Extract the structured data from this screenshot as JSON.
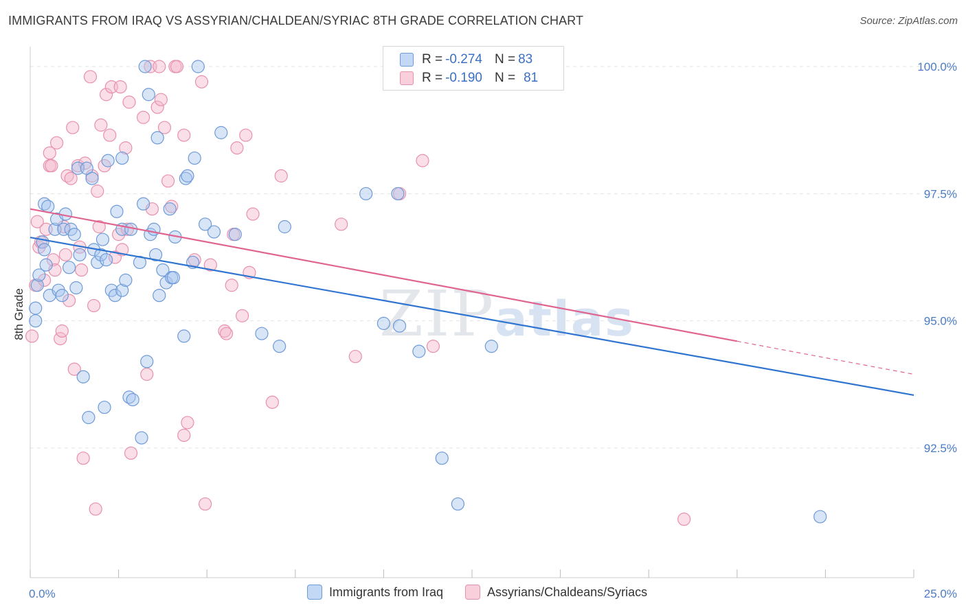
{
  "title": "IMMIGRANTS FROM IRAQ VS ASSYRIAN/CHALDEAN/SYRIAC 8TH GRADE CORRELATION CHART",
  "source": "Source: ZipAtlas.com",
  "watermark": {
    "part1": "ZIP",
    "part2": "atlas"
  },
  "legend": {
    "rows": [
      {
        "r_label": "R = ",
        "r_value": "-0.274",
        "n_label": "N = ",
        "n_value": "83"
      },
      {
        "r_label": "R = ",
        "r_value": "-0.190",
        "n_label": "N = ",
        "n_value": "81"
      }
    ]
  },
  "bottom_legend": {
    "series1": "Immigrants from Iraq",
    "series2": "Assyrians/Chaldeans/Syriacs"
  },
  "colors": {
    "blue_fill": "#a9c6ee",
    "blue_stroke": "#6d9ad8",
    "blue_line": "#2f74d0",
    "pink_fill": "#f5b8cb",
    "pink_stroke": "#e890ab",
    "pink_line": "#e0648f",
    "tick_text": "#4a7cc7",
    "grid": "#e3e3e3"
  },
  "chart_data": {
    "type": "scatter",
    "title": "IMMIGRANTS FROM IRAQ VS ASSYRIAN/CHALDEAN/SYRIAC 8TH GRADE CORRELATION CHART",
    "xlabel": "",
    "ylabel": "8th Grade",
    "xlim": [
      0,
      25
    ],
    "ylim": [
      90.0,
      100.3
    ],
    "x_tick_labels": [
      "0.0%",
      "25.0%"
    ],
    "y_ticks": [
      92.5,
      95.0,
      97.5,
      100.0
    ],
    "y_tick_labels": [
      "92.5%",
      "95.0%",
      "97.5%",
      "100.0%"
    ],
    "grid": true,
    "legend_position": "top-center",
    "series": [
      {
        "name": "Immigrants from Iraq",
        "r": -0.274,
        "n": 83,
        "trend": {
          "x": [
            0,
            25
          ],
          "y": [
            96.64,
            93.54
          ]
        },
        "points": [
          [
            0.15,
            95.0
          ],
          [
            0.15,
            95.25
          ],
          [
            0.2,
            95.7
          ],
          [
            0.25,
            95.9
          ],
          [
            0.35,
            96.55
          ],
          [
            0.4,
            96.4
          ],
          [
            0.4,
            97.3
          ],
          [
            0.45,
            96.1
          ],
          [
            0.5,
            97.25
          ],
          [
            0.55,
            95.5
          ],
          [
            0.7,
            96.8
          ],
          [
            0.75,
            97.0
          ],
          [
            0.8,
            95.6
          ],
          [
            0.9,
            95.5
          ],
          [
            0.95,
            96.8
          ],
          [
            1.0,
            97.1
          ],
          [
            1.1,
            96.05
          ],
          [
            1.15,
            96.8
          ],
          [
            1.25,
            96.7
          ],
          [
            1.3,
            95.65
          ],
          [
            1.35,
            98.0
          ],
          [
            1.4,
            96.3
          ],
          [
            1.5,
            93.9
          ],
          [
            1.6,
            98.0
          ],
          [
            1.65,
            93.1
          ],
          [
            1.75,
            97.8
          ],
          [
            1.8,
            96.4
          ],
          [
            1.9,
            96.15
          ],
          [
            2.0,
            96.3
          ],
          [
            2.05,
            96.6
          ],
          [
            2.1,
            93.3
          ],
          [
            2.15,
            96.2
          ],
          [
            2.2,
            98.15
          ],
          [
            2.3,
            95.6
          ],
          [
            2.4,
            95.5
          ],
          [
            2.45,
            97.15
          ],
          [
            2.6,
            96.8
          ],
          [
            2.6,
            98.2
          ],
          [
            2.6,
            95.6
          ],
          [
            2.7,
            95.8
          ],
          [
            2.85,
            96.8
          ],
          [
            2.8,
            93.5
          ],
          [
            2.9,
            93.45
          ],
          [
            3.1,
            96.15
          ],
          [
            3.15,
            92.7
          ],
          [
            3.2,
            97.3
          ],
          [
            3.25,
            100.0
          ],
          [
            3.3,
            94.2
          ],
          [
            3.35,
            99.45
          ],
          [
            3.4,
            96.7
          ],
          [
            3.5,
            96.8
          ],
          [
            3.55,
            96.3
          ],
          [
            3.6,
            98.6
          ],
          [
            3.65,
            95.5
          ],
          [
            3.75,
            96.0
          ],
          [
            3.85,
            95.75
          ],
          [
            3.95,
            97.2
          ],
          [
            4.0,
            95.85
          ],
          [
            4.05,
            95.85
          ],
          [
            4.1,
            96.65
          ],
          [
            4.35,
            94.7
          ],
          [
            4.4,
            97.8
          ],
          [
            4.45,
            97.85
          ],
          [
            4.6,
            96.15
          ],
          [
            4.65,
            98.2
          ],
          [
            4.75,
            100.0
          ],
          [
            4.95,
            96.9
          ],
          [
            5.2,
            96.75
          ],
          [
            5.4,
            98.7
          ],
          [
            5.8,
            96.7
          ],
          [
            6.55,
            94.75
          ],
          [
            7.05,
            94.5
          ],
          [
            7.2,
            96.85
          ],
          [
            9.5,
            97.5
          ],
          [
            10.0,
            94.95
          ],
          [
            10.4,
            97.5
          ],
          [
            10.45,
            94.9
          ],
          [
            11.0,
            94.4
          ],
          [
            11.65,
            92.3
          ],
          [
            12.1,
            91.4
          ],
          [
            13.05,
            94.5
          ],
          [
            14.05,
            100.0
          ],
          [
            22.35,
            91.15
          ]
        ]
      },
      {
        "name": "Assyrians/Chaldeans/Syriacs",
        "r": -0.19,
        "n": 81,
        "trend": {
          "x": [
            0,
            20
          ],
          "y": [
            97.2,
            94.6
          ]
        },
        "points": [
          [
            0.05,
            94.7
          ],
          [
            0.15,
            95.7
          ],
          [
            0.2,
            96.95
          ],
          [
            0.25,
            96.45
          ],
          [
            0.3,
            96.55
          ],
          [
            0.4,
            95.8
          ],
          [
            0.45,
            96.8
          ],
          [
            0.55,
            98.05
          ],
          [
            0.55,
            98.3
          ],
          [
            0.6,
            98.05
          ],
          [
            0.65,
            96.2
          ],
          [
            0.7,
            96.0
          ],
          [
            0.75,
            98.5
          ],
          [
            0.85,
            94.65
          ],
          [
            0.9,
            94.8
          ],
          [
            0.95,
            96.85
          ],
          [
            1.0,
            96.3
          ],
          [
            1.05,
            97.85
          ],
          [
            1.1,
            95.4
          ],
          [
            1.15,
            97.8
          ],
          [
            1.2,
            98.8
          ],
          [
            1.25,
            94.05
          ],
          [
            1.35,
            98.05
          ],
          [
            1.4,
            96.45
          ],
          [
            1.45,
            96.0
          ],
          [
            1.5,
            92.3
          ],
          [
            1.55,
            98.1
          ],
          [
            1.7,
            99.8
          ],
          [
            1.75,
            97.85
          ],
          [
            1.8,
            95.3
          ],
          [
            1.85,
            91.3
          ],
          [
            1.9,
            97.55
          ],
          [
            1.95,
            96.85
          ],
          [
            2.0,
            98.85
          ],
          [
            2.1,
            98.05
          ],
          [
            2.15,
            99.45
          ],
          [
            2.25,
            98.65
          ],
          [
            2.3,
            99.6
          ],
          [
            2.4,
            96.25
          ],
          [
            2.5,
            96.7
          ],
          [
            2.55,
            99.6
          ],
          [
            2.6,
            96.4
          ],
          [
            2.7,
            98.4
          ],
          [
            2.75,
            96.8
          ],
          [
            2.8,
            99.3
          ],
          [
            2.85,
            92.4
          ],
          [
            3.2,
            99.0
          ],
          [
            3.3,
            93.95
          ],
          [
            3.4,
            100.0
          ],
          [
            3.45,
            97.2
          ],
          [
            3.6,
            99.2
          ],
          [
            3.65,
            100.0
          ],
          [
            3.7,
            99.35
          ],
          [
            3.8,
            98.8
          ],
          [
            3.9,
            97.75
          ],
          [
            4.0,
            97.25
          ],
          [
            4.1,
            100.0
          ],
          [
            4.15,
            100.0
          ],
          [
            4.35,
            98.65
          ],
          [
            4.35,
            92.75
          ],
          [
            4.45,
            93.0
          ],
          [
            4.65,
            96.2
          ],
          [
            4.85,
            99.7
          ],
          [
            4.95,
            91.4
          ],
          [
            5.1,
            96.1
          ],
          [
            5.5,
            94.8
          ],
          [
            5.55,
            94.75
          ],
          [
            5.7,
            95.7
          ],
          [
            5.75,
            96.7
          ],
          [
            5.85,
            98.4
          ],
          [
            6.0,
            95.1
          ],
          [
            6.1,
            98.65
          ],
          [
            6.2,
            95.95
          ],
          [
            6.3,
            97.1
          ],
          [
            6.85,
            93.4
          ],
          [
            7.1,
            97.85
          ],
          [
            8.8,
            96.9
          ],
          [
            9.2,
            94.3
          ],
          [
            10.45,
            97.5
          ],
          [
            11.1,
            98.15
          ],
          [
            11.4,
            94.5
          ],
          [
            18.5,
            91.1
          ]
        ]
      }
    ]
  }
}
